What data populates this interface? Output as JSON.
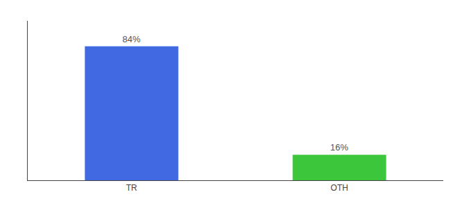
{
  "chart_data": {
    "type": "bar",
    "categories": [
      "TR",
      "OTH"
    ],
    "values": [
      84,
      16
    ],
    "value_labels": [
      "84%",
      "16%"
    ],
    "colors": [
      "#4169e1",
      "#3cc63c"
    ],
    "ylim": [
      0,
      100
    ],
    "grid": false,
    "data_labels": true,
    "tick_labels": "x"
  }
}
